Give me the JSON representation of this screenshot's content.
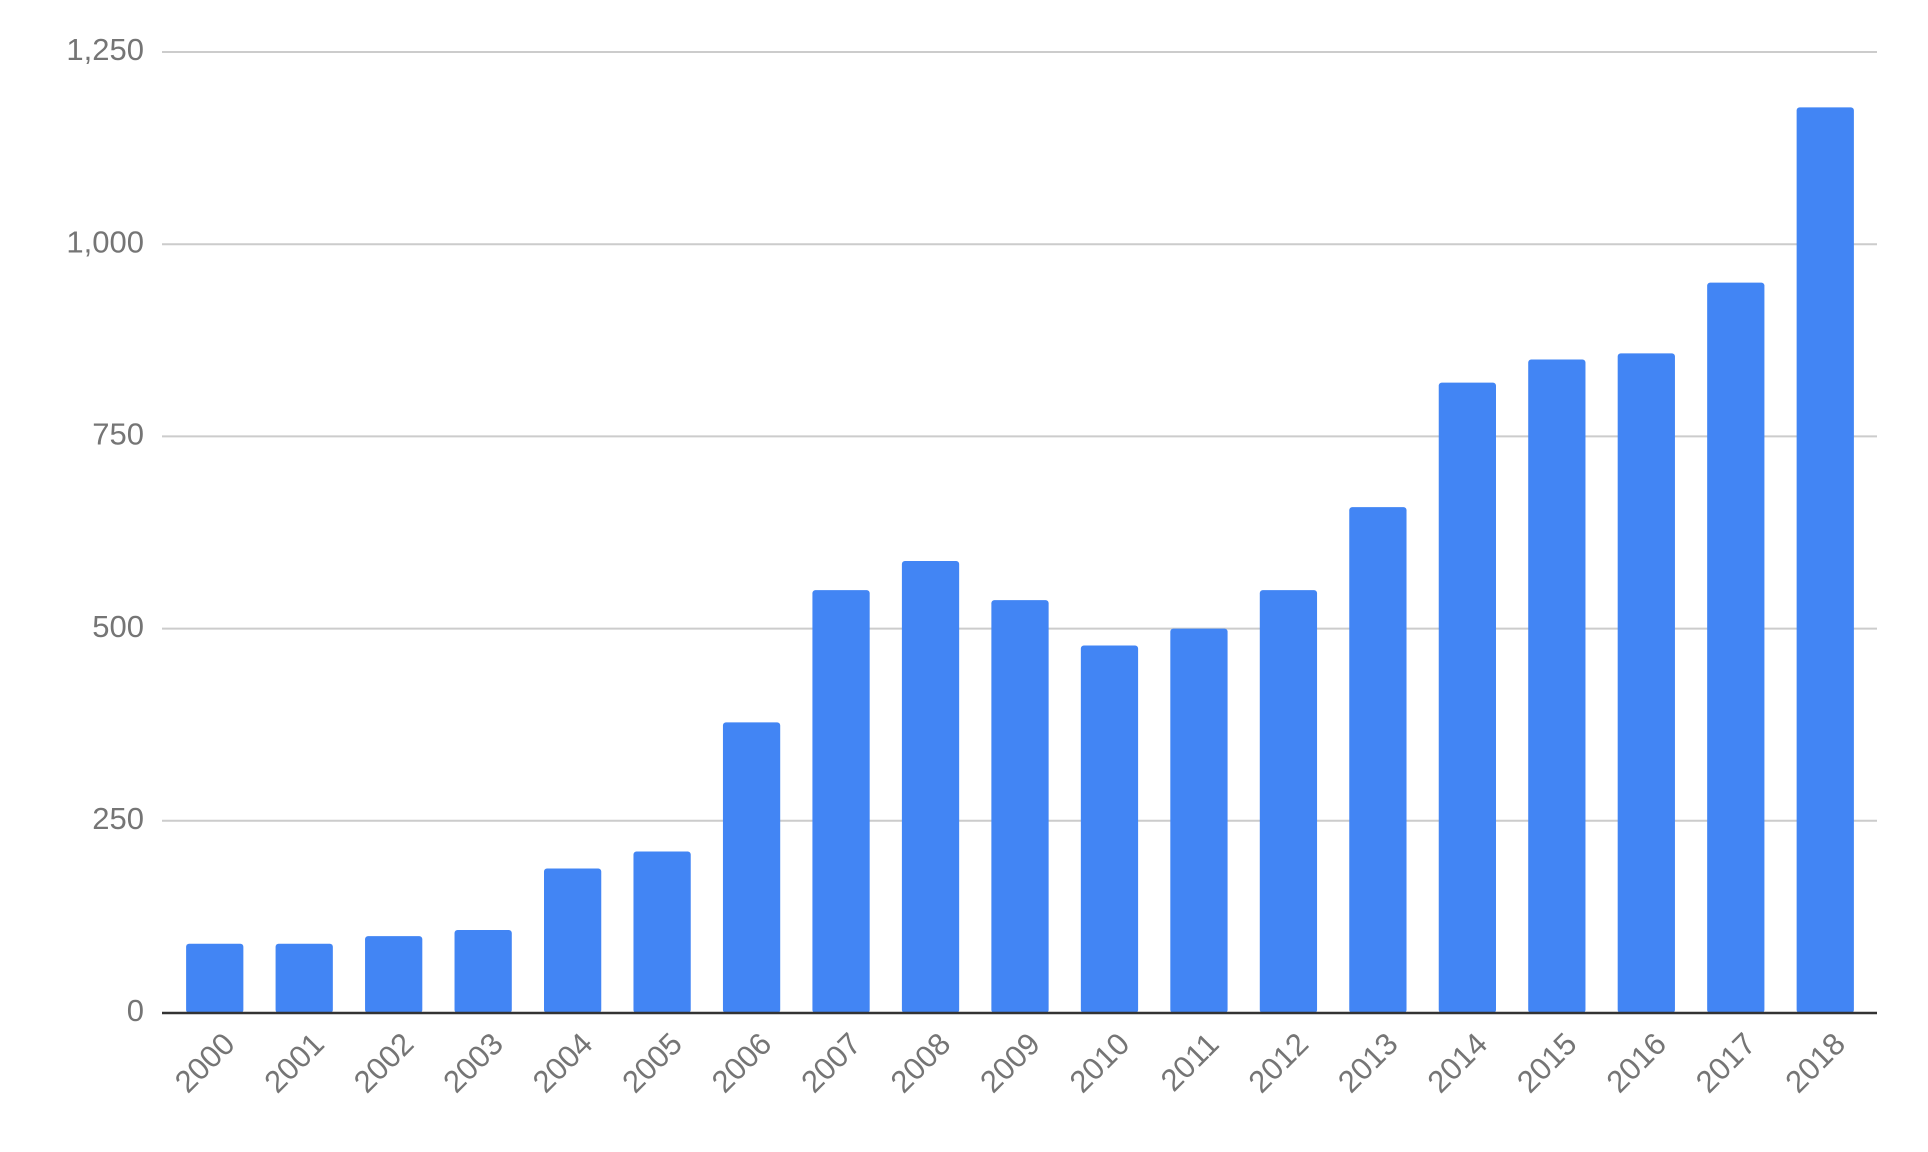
{
  "chart_data": {
    "type": "bar",
    "categories": [
      "2000",
      "2001",
      "2002",
      "2003",
      "2004",
      "2005",
      "2006",
      "2007",
      "2008",
      "2009",
      "2010",
      "2011",
      "2012",
      "2013",
      "2014",
      "2015",
      "2016",
      "2017",
      "2018"
    ],
    "values": [
      90,
      90,
      100,
      108,
      188,
      210,
      378,
      550,
      588,
      537,
      478,
      500,
      550,
      658,
      820,
      850,
      858,
      950,
      1178
    ],
    "color": "#4285f4",
    "ylim": [
      0,
      1250
    ],
    "yticks": [
      0,
      250,
      500,
      750,
      {
        "value": 1000,
        "label": "1,000"
      },
      {
        "value": 1250,
        "label": "1,250"
      }
    ],
    "grid": true
  }
}
